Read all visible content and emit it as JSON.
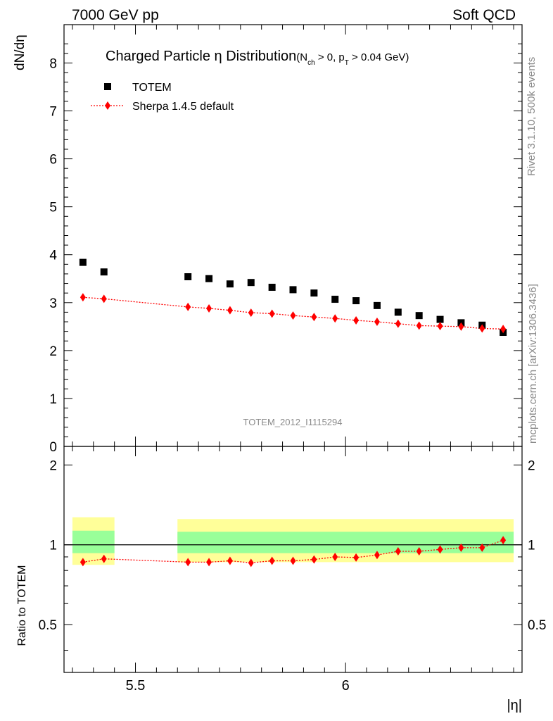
{
  "header": {
    "left": "7000 GeV pp",
    "right": "Soft QCD"
  },
  "side": {
    "rivet": "Rivet 3.1.10,  500k events",
    "mcplots": "mcplots.cern.ch [arXiv:1306.3436]"
  },
  "title": {
    "main": "Charged Particle",
    "eta": "η",
    "rest": " Distribution",
    "cond": "(N",
    "cond_sub": "ch",
    "cond_mid": " > 0, p",
    "cond_sub2": "T",
    "cond_end": " > 0.04 GeV)"
  },
  "analysis_id": "TOTEM_2012_I1115294",
  "colors": {
    "data": "#000000",
    "mc": "#ff0000",
    "band_inner": "#99ff99",
    "band_outer": "#ffff99"
  },
  "chart_data": [
    {
      "type": "scatter",
      "xlim": [
        5.33,
        6.42
      ],
      "ylim": [
        0,
        8.8
      ],
      "ylabel": "dN/dη",
      "yticks": [
        0,
        1,
        2,
        3,
        4,
        5,
        6,
        7,
        8
      ],
      "legend": {
        "placement": "top-left"
      },
      "series": [
        {
          "name": "TOTEM",
          "marker": "square",
          "x": [
            5.375,
            5.425,
            5.625,
            5.675,
            5.725,
            5.775,
            5.825,
            5.875,
            5.925,
            5.975,
            6.025,
            6.075,
            6.125,
            6.175,
            6.225,
            6.275,
            6.325,
            6.375
          ],
          "y": [
            3.84,
            3.64,
            3.54,
            3.5,
            3.39,
            3.42,
            3.32,
            3.27,
            3.2,
            3.07,
            3.04,
            2.94,
            2.8,
            2.73,
            2.65,
            2.58,
            2.53,
            2.38
          ]
        },
        {
          "name": "Sherpa 1.4.5 default",
          "marker": "diamond",
          "x": [
            5.375,
            5.425,
            5.625,
            5.675,
            5.725,
            5.775,
            5.825,
            5.875,
            5.925,
            5.975,
            6.025,
            6.075,
            6.125,
            6.175,
            6.225,
            6.275,
            6.325,
            6.375
          ],
          "y": [
            3.11,
            3.08,
            2.91,
            2.88,
            2.84,
            2.79,
            2.77,
            2.73,
            2.7,
            2.67,
            2.63,
            2.6,
            2.56,
            2.52,
            2.51,
            2.5,
            2.46,
            2.45
          ]
        }
      ]
    },
    {
      "type": "scatter",
      "xlim": [
        5.33,
        6.42
      ],
      "ylim": [
        0.33,
        2.35
      ],
      "ylabel": "Ratio to TOTEM",
      "xlabel": "|η|",
      "yticks": [
        0.5,
        1,
        2
      ],
      "xticks": [
        5.5,
        6
      ],
      "reference_line": 1,
      "bands": [
        {
          "x_range": [
            5.35,
            5.45
          ],
          "inner": [
            0.93,
            1.13
          ],
          "outer": [
            0.84,
            1.27
          ]
        },
        {
          "x_range": [
            5.6,
            6.4
          ],
          "inner": [
            0.93,
            1.12
          ],
          "outer": [
            0.86,
            1.25
          ]
        }
      ],
      "series": [
        {
          "name": "Sherpa 1.4.5 default",
          "marker": "diamond",
          "x": [
            5.375,
            5.425,
            5.625,
            5.675,
            5.725,
            5.775,
            5.825,
            5.875,
            5.925,
            5.975,
            6.025,
            6.075,
            6.125,
            6.175,
            6.225,
            6.275,
            6.325,
            6.375
          ],
          "y": [
            0.86,
            0.885,
            0.86,
            0.86,
            0.87,
            0.855,
            0.87,
            0.87,
            0.88,
            0.9,
            0.895,
            0.915,
            0.945,
            0.945,
            0.96,
            0.975,
            0.975,
            1.04
          ]
        }
      ]
    }
  ]
}
